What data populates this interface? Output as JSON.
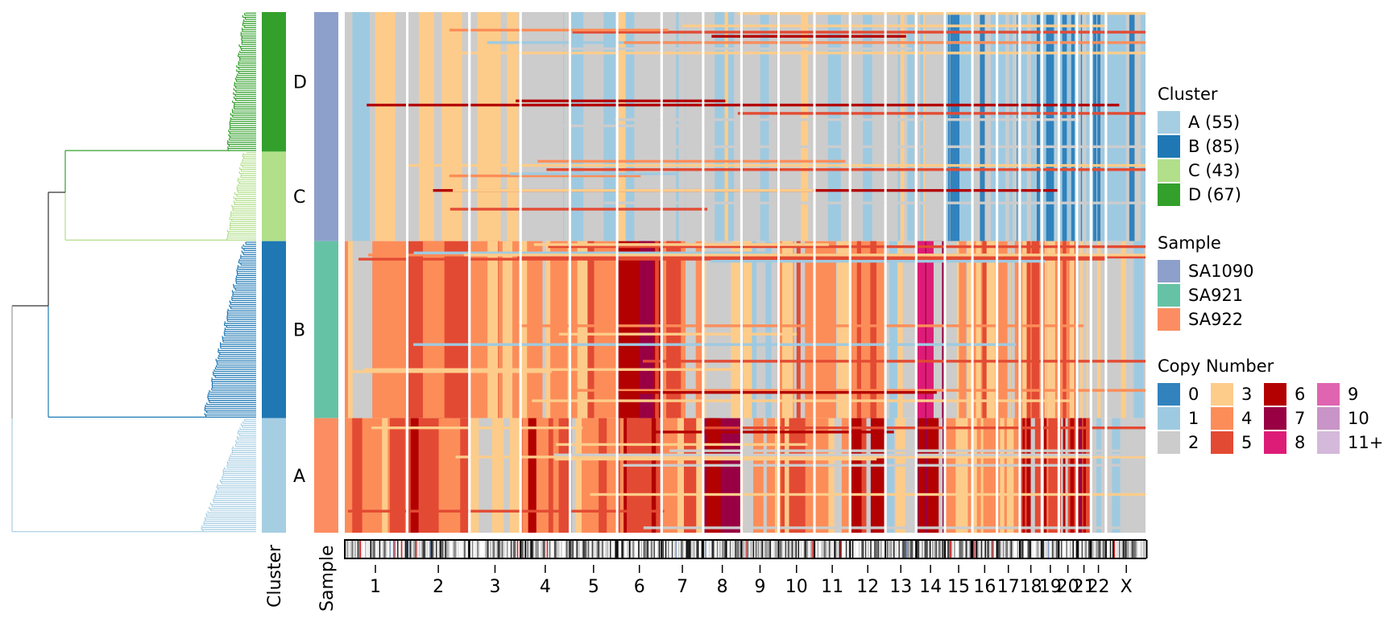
{
  "chart_data": {
    "type": "heatmap",
    "title": "",
    "xlabel": "",
    "ylabel": "",
    "row_annotations": [
      {
        "name": "Cluster",
        "axis_label": "Cluster"
      },
      {
        "name": "Sample",
        "axis_label": "Sample"
      }
    ],
    "chromosomes": [
      "1",
      "2",
      "3",
      "4",
      "5",
      "6",
      "7",
      "8",
      "9",
      "10",
      "11",
      "12",
      "13",
      "14",
      "15",
      "16",
      "17",
      "18",
      "19",
      "20",
      "21",
      "22",
      "X"
    ],
    "chromosome_relative_sizes": [
      249,
      243,
      198,
      191,
      182,
      171,
      159,
      146,
      141,
      136,
      135,
      134,
      115,
      107,
      102,
      90,
      83,
      80,
      59,
      64,
      47,
      51,
      156
    ],
    "clusters": [
      {
        "label": "D",
        "count": 67,
        "color": "#33a02c",
        "sample": "SA1090"
      },
      {
        "label": "C",
        "count": 43,
        "color": "#b2df8a",
        "sample": "SA1090"
      },
      {
        "label": "B",
        "count": 85,
        "color": "#1f78b4",
        "sample": "SA921"
      },
      {
        "label": "A",
        "count": 55,
        "color": "#a6cee3",
        "sample": "SA922"
      }
    ],
    "samples": [
      {
        "label": "SA1090",
        "color": "#8da0cb",
        "cells": 110
      },
      {
        "label": "SA921",
        "color": "#66c2a5",
        "cells": 85
      },
      {
        "label": "SA922",
        "color": "#fc8d62",
        "cells": 55
      }
    ],
    "copy_number_scale": [
      {
        "label": "0",
        "color": "#3182bd"
      },
      {
        "label": "1",
        "color": "#9ecae1"
      },
      {
        "label": "2",
        "color": "#cccccc"
      },
      {
        "label": "3",
        "color": "#fdcc8a"
      },
      {
        "label": "4",
        "color": "#fc8d59"
      },
      {
        "label": "5",
        "color": "#e34a33"
      },
      {
        "label": "6",
        "color": "#b30000"
      },
      {
        "label": "7",
        "color": "#980043"
      },
      {
        "label": "8",
        "color": "#dd1c77"
      },
      {
        "label": "9",
        "color": "#df65b0"
      },
      {
        "label": "10",
        "color": "#c994c7"
      },
      {
        "label": "11+",
        "color": "#d4b9da"
      }
    ],
    "dominant_state_by_sample_chrom": {
      "SA1090": [
        2,
        2,
        2,
        2,
        1,
        2,
        2,
        2,
        2,
        2,
        2,
        2,
        2,
        2,
        1,
        1,
        1,
        1,
        1,
        1,
        1,
        1,
        1
      ],
      "SA921": [
        4,
        5,
        4,
        3,
        4,
        6,
        4,
        3,
        2,
        4,
        4,
        4,
        2,
        7,
        3,
        4,
        4,
        4,
        4,
        4,
        2,
        2,
        2
      ],
      "SA922": [
        4,
        5,
        3,
        5,
        4,
        5,
        4,
        7,
        3,
        4,
        4,
        6,
        2,
        7,
        4,
        4,
        4,
        5,
        5,
        5,
        6,
        2,
        2
      ]
    }
  },
  "legends": {
    "cluster": {
      "title": "Cluster",
      "items": [
        {
          "label": "A (55)",
          "color": "#a6cee3"
        },
        {
          "label": "B (85)",
          "color": "#1f78b4"
        },
        {
          "label": "C (43)",
          "color": "#b2df8a"
        },
        {
          "label": "D (67)",
          "color": "#33a02c"
        }
      ]
    },
    "sample": {
      "title": "Sample",
      "items": [
        {
          "label": "SA1090",
          "color": "#8da0cb"
        },
        {
          "label": "SA921",
          "color": "#66c2a5"
        },
        {
          "label": "SA922",
          "color": "#fc8d62"
        }
      ]
    },
    "copy_number": {
      "title": "Copy Number"
    }
  }
}
